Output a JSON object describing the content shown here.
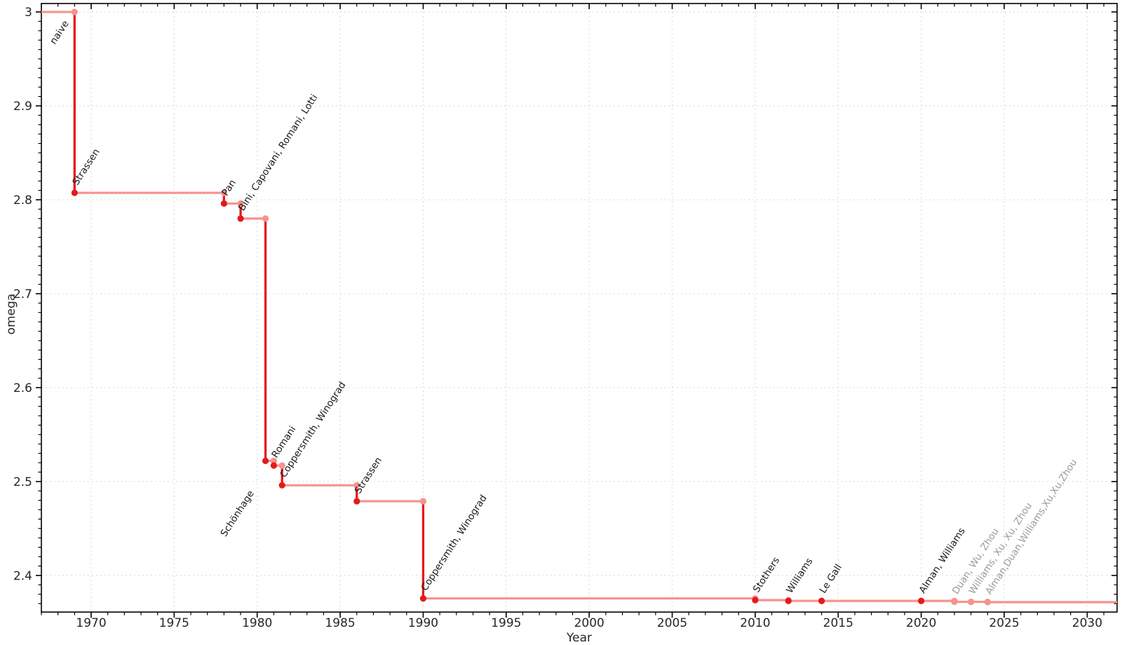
{
  "chart_data": {
    "type": "line",
    "variant": "step",
    "title": "",
    "xlabel": "Year",
    "ylabel": "omega",
    "x_axis": {
      "min": 1967,
      "max": 2031.8,
      "major_ticks": [
        1970,
        1975,
        1980,
        1985,
        1990,
        1995,
        2000,
        2005,
        2010,
        2015,
        2020,
        2025,
        2030
      ],
      "minor_step": 1,
      "grid": true
    },
    "y_axis": {
      "min": 2.361,
      "max": 3.009,
      "major_ticks": [
        {
          "v": 3.0,
          "t": "3"
        },
        {
          "v": 2.9,
          "t": "2.9"
        },
        {
          "v": 2.8,
          "t": "2.8"
        },
        {
          "v": 2.7,
          "t": "2.7"
        },
        {
          "v": 2.6,
          "t": "2.6"
        },
        {
          "v": 2.5,
          "t": "2.5"
        },
        {
          "v": 2.4,
          "t": "2.4"
        }
      ],
      "minor_step": 0.01,
      "grid": true
    },
    "colors": {
      "step_line_light": "#f7928f",
      "drop_line_dark": "#e31a1c",
      "marker_dark": "#e31a1c",
      "marker_light": "#f7928f",
      "label_dark": "#1a1a1a",
      "label_gray": "#9b9b9b",
      "grid": "#dadada",
      "axis": "#000000",
      "tick_text": "#262626"
    },
    "baseline": {
      "label": "naive",
      "omega": 3.0,
      "label_anchor": "end",
      "label_offset": [
        -8,
        16
      ]
    },
    "steps": [
      {
        "label": "Strassen",
        "year": 1969,
        "omega": 2.8074,
        "tier": "established"
      },
      {
        "label": "Pan",
        "year": 1978,
        "omega": 2.796,
        "tier": "established"
      },
      {
        "label": "Bini, Capovani, Romani, Lotti",
        "year": 1979,
        "omega": 2.78,
        "tier": "established"
      },
      {
        "label": "Schönhage",
        "year": 1980.5,
        "omega": 2.522,
        "tier": "established",
        "label_anchor": "end",
        "label_offset": [
          -16,
          46
        ]
      },
      {
        "label": "Romani",
        "year": 1981,
        "omega": 2.517,
        "tier": "established"
      },
      {
        "label": "Coppersmith, Winograd",
        "year": 1981.5,
        "omega": 2.496,
        "tier": "established"
      },
      {
        "label": "Strassen",
        "year": 1986,
        "omega": 2.479,
        "tier": "established"
      },
      {
        "label": "Coppersmith, Winograd",
        "year": 1990,
        "omega": 2.3755,
        "tier": "established"
      },
      {
        "label": "Stothers",
        "year": 2010,
        "omega": 2.3737,
        "tier": "established"
      },
      {
        "label": "Williams",
        "year": 2012,
        "omega": 2.3729,
        "tier": "established"
      },
      {
        "label": "Le Gall",
        "year": 2014,
        "omega": 2.37287,
        "tier": "established"
      },
      {
        "label": "Alman, Williams",
        "year": 2020,
        "omega": 2.37286,
        "tier": "established"
      },
      {
        "label": "Duan, Wu, Zhou",
        "year": 2022,
        "omega": 2.37188,
        "tier": "recent"
      },
      {
        "label": "Williams, Xu, Xu, Zhou",
        "year": 2023,
        "omega": 2.37187,
        "tier": "recent"
      },
      {
        "label": "Alman,Duan,Williams,Xu,Xu,Zhou",
        "year": 2024,
        "omega": 2.37155,
        "tier": "recent"
      }
    ]
  }
}
